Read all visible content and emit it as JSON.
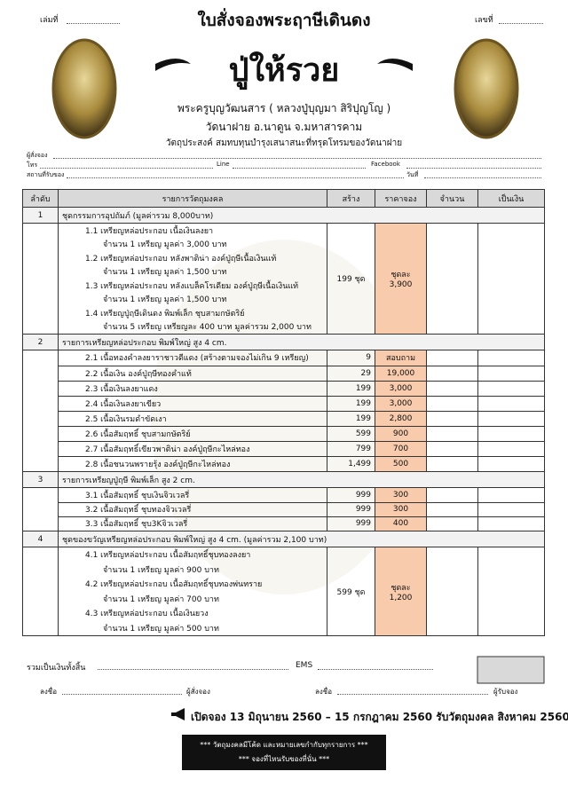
{
  "header": {
    "book_label": "เล่มที่",
    "number_label": "เลขที่",
    "title": "ใบสั่งจองพระฤาษีเดินดง",
    "name": "ปู่ให้รวย",
    "monk": "พระครูบุญวัฒนสาร ( หลวงปู่บุญมา สิริปุญโญ )",
    "temple": "วัดนาฝาย  อ.นาดูน  จ.มหาสารคาม",
    "purpose": "วัตถุประสงค์  สมทบทุนบำรุงเสนาสนะที่ทรุดโทรมของวัดนาฝาย"
  },
  "form": {
    "orderer": "ผู้สั่งจอง",
    "phone": "โทร",
    "line": "Line",
    "facebook": "Facebook",
    "pickup": "สถานที่รับของ",
    "date": "วันที่"
  },
  "table": {
    "columns": [
      "ลำดับ",
      "รายการวัตถุมงคล",
      "สร้าง",
      "ราคาจอง",
      "จำนวน",
      "เป็นเงิน"
    ],
    "sections": [
      {
        "no": "1",
        "title": "ชุดกรรมการอุปถัมภ์  (มูลค่ารวม 8,000บาท)",
        "built": "199 ชุด",
        "price_label": "ชุดละ",
        "price": "3,900",
        "items": [
          {
            "name": "1.1  เหรียญหล่อประกอบ เนื้อเงินลงยา",
            "detail": "จำนวน 1 เหรียญ  มูลค่า 3,000 บาท"
          },
          {
            "name": "1.2  เหรียญหล่อประกอบ หลังพาติน่า องค์ปู่ฤษีเนื้อเงินแท้",
            "detail": "จำนวน 1 เหรียญ  มูลค่า 1,500 บาท"
          },
          {
            "name": "1.3  เหรียญหล่อประกอบ หลังแบล็คโรเดียม องค์ปู่ฤษีเนื้อเงินแท้",
            "detail": "จำนวน 1 เหรียญ  มูลค่า 1,500 บาท"
          },
          {
            "name": "1.4  เหรียญปู่ฤษีเดินดง พิมพ์เล็ก ชุบสามกษัตริย์",
            "detail": "จำนวน 5 เหรียญ  เหรียญละ 400 บาท  มูลค่ารวม 2,000 บาท"
          }
        ]
      },
      {
        "no": "2",
        "title": "รายการเหรียญหล่อประกอบ พิมพ์ใหญ่ สูง 4 cm.",
        "rows": [
          {
            "name": "2.1 เนื้อทองคำลงยาราชาวดีแดง (สร้างตามจองไม่เกิน 9 เหรียญ)",
            "built": "9",
            "price": "สอบถาม"
          },
          {
            "name": "2.2 เนื้อเงิน องค์ปู่ฤษีทองคำแท้",
            "built": "29",
            "price": "19,000"
          },
          {
            "name": "2.3 เนื้อเงินลงยาแดง",
            "built": "199",
            "price": "3,000"
          },
          {
            "name": "2.4 เนื้อเงินลงยาเขียว",
            "built": "199",
            "price": "3,000"
          },
          {
            "name": "2.5 เนื้อเงินรมดำขัดเงา",
            "built": "199",
            "price": "2,800"
          },
          {
            "name": "2.6 เนื้อสัมฤทธิ์ ชุบสามกษัตริย์",
            "built": "599",
            "price": "900"
          },
          {
            "name": "2.7 เนื้อสัมฤทธิ์เขียวพาติน่า องค์ปู่ฤษีกะไหล่ทอง",
            "built": "799",
            "price": "700"
          },
          {
            "name": "2.8 เนื้อชนวนพรายรุ้ง องค์ปู่ฤษีกะไหล่ทอง",
            "built": "1,499",
            "price": "500"
          }
        ]
      },
      {
        "no": "3",
        "title": "รายการเหรียญปู่ฤษี พิมพ์เล็ก สูง 2 cm.",
        "rows": [
          {
            "name": "3.1 เนื้อสัมฤทธิ์ ชุบเงินจิวเวลรี่",
            "built": "999",
            "price": "300"
          },
          {
            "name": "3.2 เนื้อสัมฤทธิ์ ชุบทองจิวเวลรี่",
            "built": "999",
            "price": "300"
          },
          {
            "name": "3.3 เนื้อสัมฤทธิ์ ชุบ3Kจิวเวลรี่",
            "built": "999",
            "price": "400"
          }
        ]
      },
      {
        "no": "4",
        "title": "ชุดของขวัญเหรียญหล่อประกอบ พิมพ์ใหญ่ สูง 4 cm.  (มูลค่ารวม 2,100 บาท)",
        "built": "599 ชุด",
        "price_label": "ชุดละ",
        "price": "1,200",
        "items": [
          {
            "name": "4.1  เหรียญหล่อประกอบ เนื้อสัมฤทธิ์ชุบทองลงยา",
            "detail": "จำนวน 1 เหรียญ  มูลค่า 900 บาท"
          },
          {
            "name": "4.2  เหรียญหล่อประกอบ เนื้อสัมฤทธิ์ชุบทองพ่นทราย",
            "detail": "จำนวน 1 เหรียญ  มูลค่า 700 บาท"
          },
          {
            "name": "4.3  เหรียญหล่อประกอบ เนื้อเงินยวง",
            "detail": "จำนวน 1 เหรียญ  มูลค่า 500 บาท"
          }
        ]
      }
    ]
  },
  "footer": {
    "total": "รวมเป็นเงินทั้งสิ้น",
    "ems": "EMS",
    "sign1": "ลงชื่อ",
    "orderer": "ผู้สั่งจอง",
    "sign2": "ลงชื่อ",
    "receiver": "ผู้รับจอง",
    "dates": "เปิดจอง 13 มิถุนายน 2560 – 15 กรกฎาคม 2560   รับวัตถุมงคล สิงหาคม 2560",
    "note1": "*** วัตถุมงคลมีโค้ด และหมายเลขกำกับทุกรายการ ***",
    "note2": "*** จองที่ไหนรับของที่นั่น ***"
  }
}
